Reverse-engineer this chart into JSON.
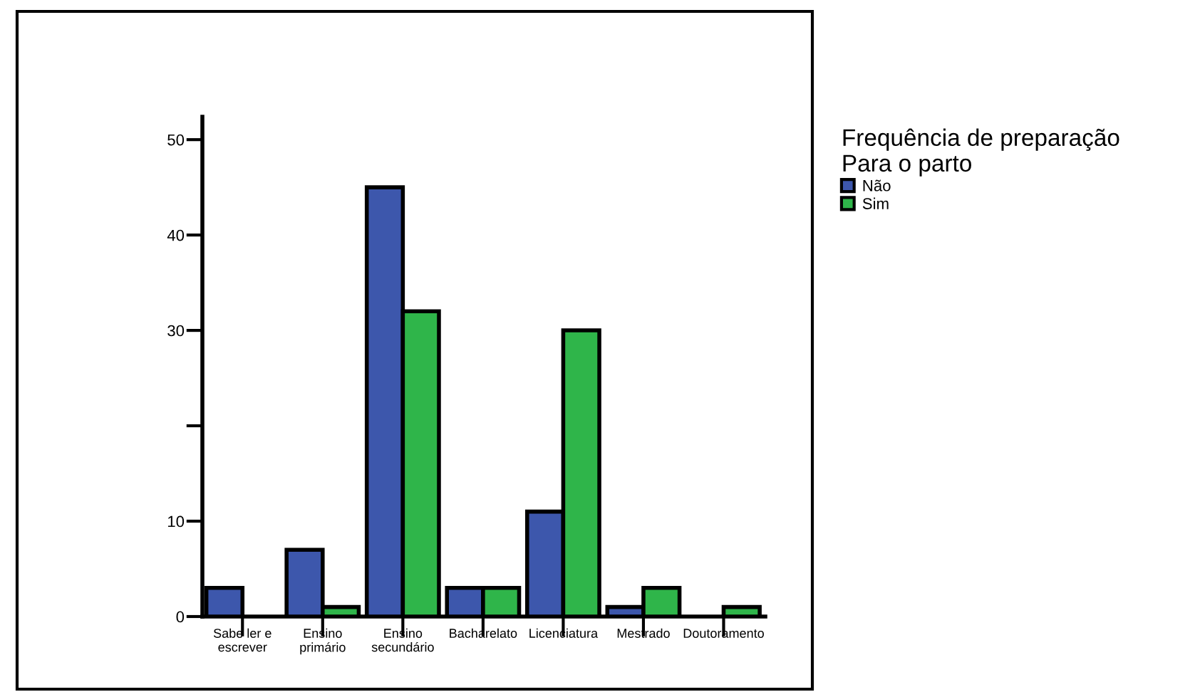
{
  "chart_data": {
    "type": "bar",
    "legend_title": "Frequência de preparação\nPara o parto",
    "categories": [
      "Sabe ler e\nescrever",
      "Ensino\nprimário",
      "Ensino\nsecundário",
      "Bacharelato",
      "Licenciatura",
      "Mestrado",
      "Doutoramento"
    ],
    "series": [
      {
        "name": "Não",
        "color": "#3d57ac",
        "values": [
          3,
          7,
          45,
          3,
          11,
          1,
          0
        ]
      },
      {
        "name": "Sim",
        "color": "#2fb54a",
        "values": [
          0,
          1,
          32,
          3,
          30,
          3,
          1
        ]
      }
    ],
    "ylim": [
      0,
      52.4
    ],
    "yticks": [
      0,
      10,
      {
        "value": 20,
        "label": null
      },
      30,
      40,
      50
    ],
    "grid": false,
    "legend": "right"
  }
}
